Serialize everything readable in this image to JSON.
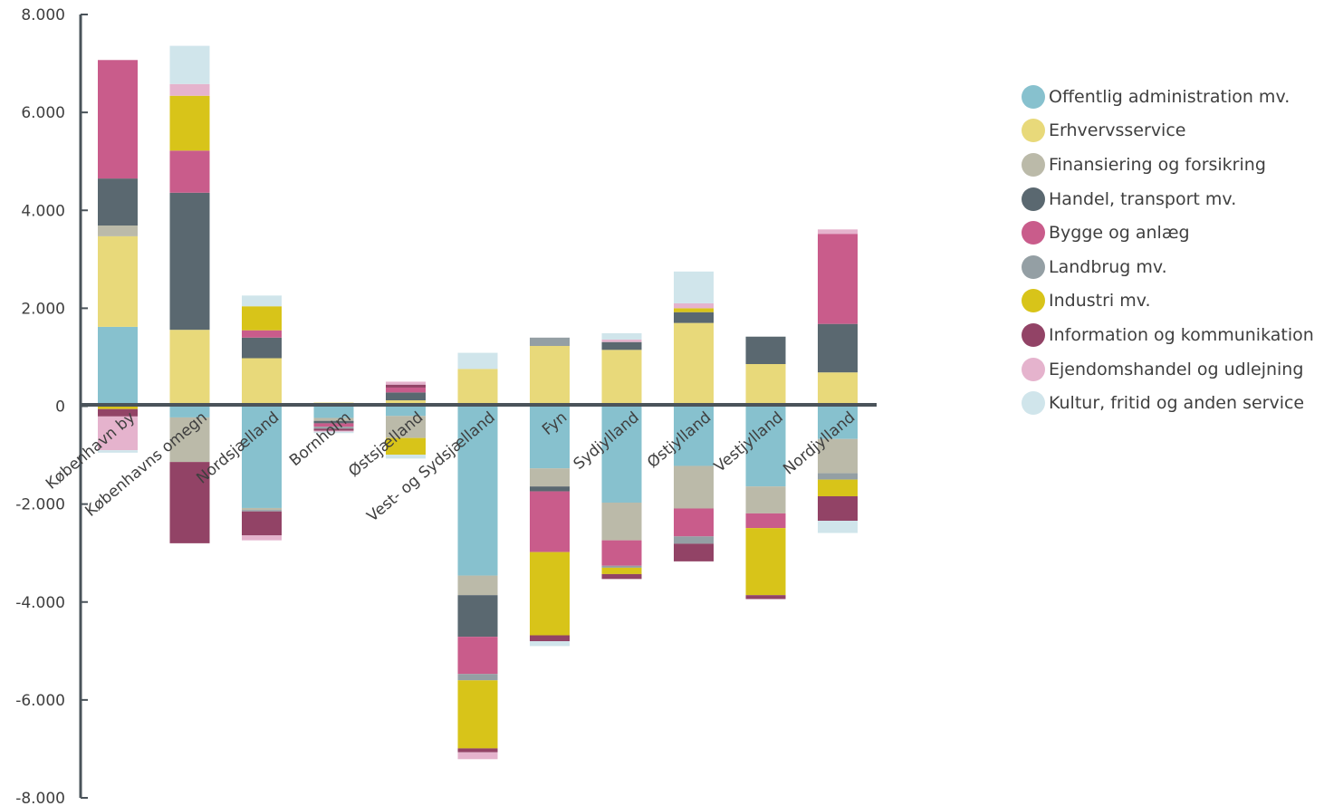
{
  "chart_data": {
    "type": "bar",
    "stacked": true,
    "ylim": [
      -8000,
      8000
    ],
    "yticks": [
      8000,
      6000,
      4000,
      2000,
      0,
      -2000,
      -4000,
      -6000,
      -8000
    ],
    "ytick_labels": [
      "8.000",
      "6.000",
      "4.000",
      "2.000",
      "0",
      "-2.000",
      "-4.000",
      "-6.000",
      "-8.000"
    ],
    "legend_position": "right",
    "categories": [
      "København by",
      "Københavns omegn",
      "Nordsjælland",
      "Bornholm",
      "Østsjælland",
      "Vest- og Sydsjælland",
      "Fyn",
      "Sydjylland",
      "Østjylland",
      "Vestjylland",
      "Nordjylland"
    ],
    "series": [
      {
        "name": "Offentlig administration mv.",
        "color": "#87c1ce",
        "values": [
          1620,
          -230,
          -2080,
          -240,
          -200,
          -3460,
          -1270,
          -1970,
          -1220,
          -1640,
          -670
        ]
      },
      {
        "name": "Erhvervsservice",
        "color": "#e8d97a",
        "values": [
          1850,
          1560,
          980,
          30,
          120,
          760,
          1230,
          1150,
          1700,
          860,
          690
        ]
      },
      {
        "name": "Finansiering og forsikring",
        "color": "#bbbaa9",
        "values": [
          220,
          -910,
          -40,
          -60,
          -450,
          -400,
          -370,
          -770,
          -870,
          -550,
          -700
        ]
      },
      {
        "name": "Handel, transport mv.",
        "color": "#5a6870",
        "values": [
          960,
          2800,
          420,
          -50,
          160,
          -850,
          -100,
          160,
          220,
          560,
          990
        ]
      },
      {
        "name": "Bygge og anlæg",
        "color": "#c95c8b",
        "values": [
          2420,
          860,
          150,
          -70,
          100,
          -760,
          -1240,
          -520,
          -570,
          -300,
          1840
        ]
      },
      {
        "name": "Landbrug mv.",
        "color": "#949fa4",
        "values": [
          0,
          0,
          -30,
          -40,
          0,
          -130,
          170,
          -40,
          -150,
          0,
          -130
        ]
      },
      {
        "name": "Industri mv.",
        "color": "#d8c419",
        "values": [
          -60,
          1120,
          490,
          40,
          -340,
          -1390,
          -1700,
          -130,
          80,
          -1370,
          -340
        ]
      },
      {
        "name": "Information og kommunikation",
        "color": "#924366",
        "values": [
          -150,
          -1660,
          -490,
          -40,
          60,
          -80,
          -120,
          -100,
          -360,
          -80,
          -500
        ]
      },
      {
        "name": "Ejendomshandel og udlejning",
        "color": "#e5b3cd",
        "values": [
          -690,
          240,
          -100,
          -20,
          60,
          -140,
          0,
          50,
          100,
          0,
          90
        ]
      },
      {
        "name": "Kultur, fritid og anden service",
        "color": "#d0e5eb",
        "values": [
          -50,
          780,
          220,
          -30,
          -80,
          330,
          -100,
          130,
          650,
          0,
          -250
        ]
      }
    ]
  }
}
